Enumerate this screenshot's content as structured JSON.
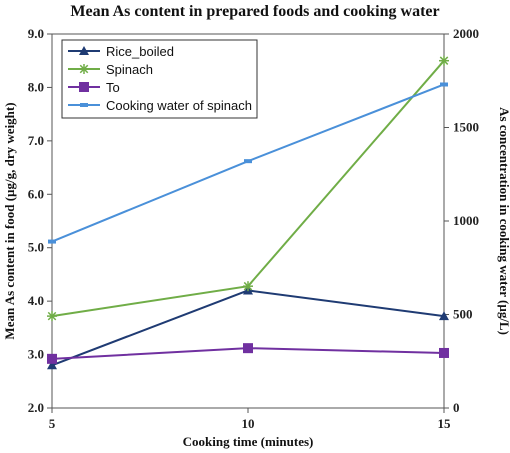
{
  "chart_data": {
    "type": "line",
    "title": "Mean As content in prepared foods and cooking water",
    "xlabel": "Cooking time (minutes)",
    "ylabel": "Mean As content in food (µg/g, dry weight)",
    "y2label": "As concentration in cooking water (µg/L)",
    "x": [
      5,
      10,
      15
    ],
    "xticks": [
      "5",
      "10",
      "15"
    ],
    "xlim": [
      5,
      15
    ],
    "ylim": [
      2.0,
      9.0
    ],
    "yticks": [
      "2.0",
      "3.0",
      "4.0",
      "5.0",
      "6.0",
      "7.0",
      "8.0",
      "9.0"
    ],
    "y2lim": [
      0,
      2000
    ],
    "y2ticks": [
      "0",
      "500",
      "1000",
      "1500",
      "2000"
    ],
    "grid": false,
    "legend_position": "top-left",
    "series": [
      {
        "name": "Rice_boiled",
        "axis": "left",
        "values": [
          2.8,
          4.2,
          3.72
        ],
        "color": "#1f3b73",
        "marker": "triangle"
      },
      {
        "name": "Spinach",
        "axis": "left",
        "values": [
          3.72,
          4.28,
          8.5
        ],
        "color": "#70ad47",
        "marker": "star"
      },
      {
        "name": "To",
        "axis": "left",
        "values": [
          2.92,
          3.12,
          3.03
        ],
        "color": "#7030a0",
        "marker": "square"
      },
      {
        "name": "Cooking water of spinach",
        "axis": "right",
        "values": [
          890,
          1320,
          1730
        ],
        "color": "#4a90d9",
        "marker": "dash"
      }
    ]
  }
}
